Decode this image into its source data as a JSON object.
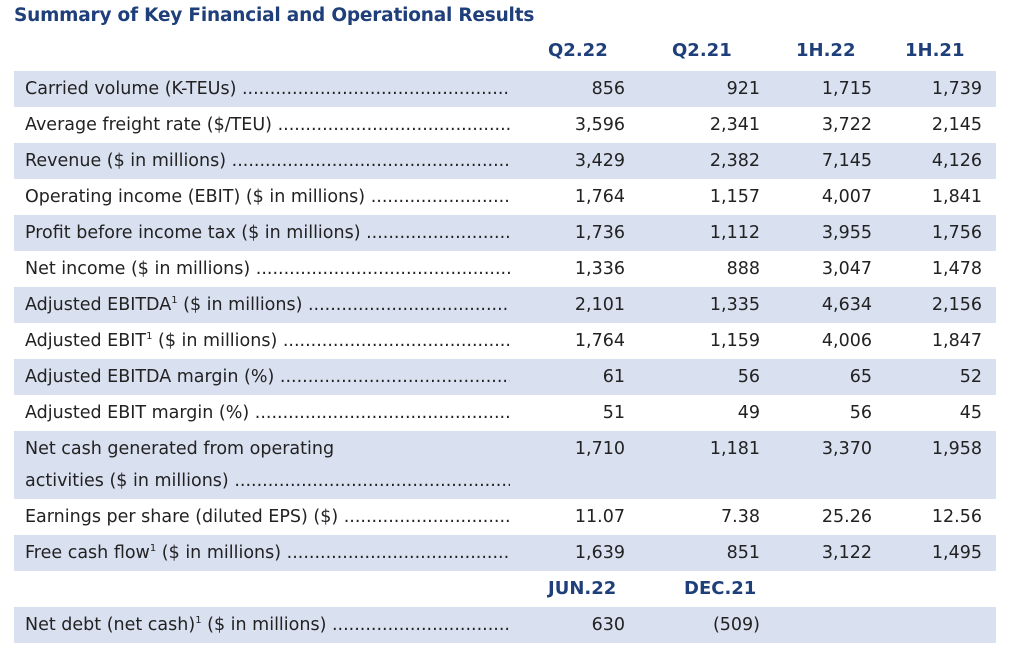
{
  "title": "Summary of Key Financial and Operational Results",
  "columns": [
    "Q2.22",
    "Q2.21",
    "1H.22",
    "1H.21"
  ],
  "rows": [
    {
      "label": "Carried volume (K-TEUs)",
      "sup": "",
      "label_rest": "",
      "values": [
        "856",
        "921",
        "1,715",
        "1,739"
      ]
    },
    {
      "label": "Average freight rate ($/TEU)",
      "sup": "",
      "label_rest": "",
      "values": [
        "3,596",
        "2,341",
        "3,722",
        "2,145"
      ]
    },
    {
      "label": "Revenue ($ in millions)",
      "sup": "",
      "label_rest": "",
      "values": [
        "3,429",
        "2,382",
        "7,145",
        "4,126"
      ]
    },
    {
      "label": "Operating income (EBIT) ($ in millions)",
      "sup": "",
      "label_rest": "",
      "values": [
        "1,764",
        "1,157",
        "4,007",
        "1,841"
      ]
    },
    {
      "label": "Profit before income tax ($ in millions)",
      "sup": "",
      "label_rest": "",
      "values": [
        "1,736",
        "1,112",
        "3,955",
        "1,756"
      ]
    },
    {
      "label": "Net income ($ in millions)",
      "sup": "",
      "label_rest": "",
      "values": [
        "1,336",
        "888",
        "3,047",
        "1,478"
      ]
    },
    {
      "label": "Adjusted EBITDA",
      "sup": "1",
      "label_rest": " ($ in millions)",
      "values": [
        "2,101",
        "1,335",
        "4,634",
        "2,156"
      ]
    },
    {
      "label": "Adjusted EBIT",
      "sup": "1",
      "label_rest": " ($ in millions)",
      "values": [
        "1,764",
        "1,159",
        "4,006",
        "1,847"
      ]
    },
    {
      "label": "Adjusted EBITDA margin (%)",
      "sup": "",
      "label_rest": "",
      "values": [
        "61",
        "56",
        "65",
        "52"
      ]
    },
    {
      "label": "Adjusted EBIT margin (%)",
      "sup": "",
      "label_rest": "",
      "values": [
        "51",
        "49",
        "56",
        "45"
      ]
    },
    {
      "label": "Net cash generated from operating",
      "sup": "",
      "label_rest": "activities ($ in millions)",
      "values": [
        "1,710",
        "1,181",
        "3,370",
        "1,958"
      ]
    },
    {
      "label": "Earnings per share (diluted EPS) ($)",
      "sup": "",
      "label_rest": "",
      "values": [
        "11.07",
        "7.38",
        "25.26",
        "12.56"
      ]
    },
    {
      "label": "Free cash flow",
      "sup": "1",
      "label_rest": " ($ in millions)",
      "values": [
        "1,639",
        "851",
        "3,122",
        "1,495"
      ]
    }
  ],
  "debt_columns": [
    "JUN.22",
    "DEC.21"
  ],
  "debt_row": {
    "label": "Net debt (net cash)",
    "sup": "1",
    "label_rest": " ($ in millions)",
    "values": [
      "630",
      "(509)"
    ]
  }
}
